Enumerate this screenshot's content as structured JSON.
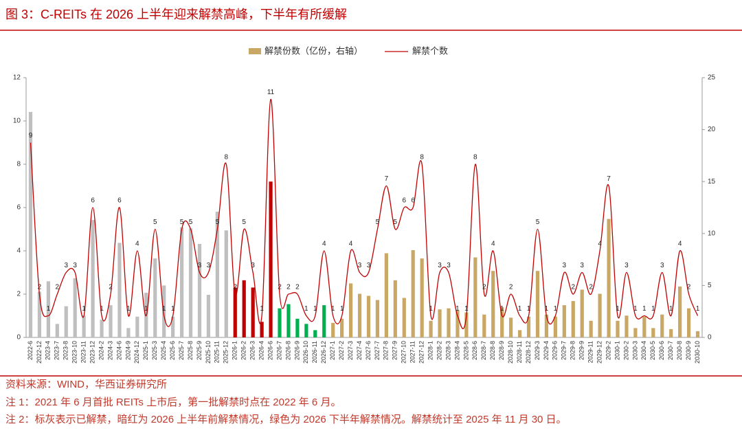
{
  "chart_data": {
    "type": "bar_line",
    "title": "图 3：C-REITs 在 2026 上半年迎来解禁高峰，下半年有所缓解",
    "source": "资料来源：WIND，华西证券研究所",
    "notes": [
      "注 1：2021 年 6 月首批 REITs 上市后，第一批解禁时点在 2022 年 6 月。",
      "注 2：标灰表示已解禁，暗红为 2026 上半年前解禁情况，绿色为 2026 下半年解禁情况。解禁统计至 2025 年 11 月 30 日。"
    ],
    "categories": [
      "2022-6",
      "2022-12",
      "2023-4",
      "2023-7",
      "2023-8",
      "2023-10",
      "2023-11",
      "2023-12",
      "2024-2",
      "2024-3",
      "2024-6",
      "2024-9",
      "2024-12",
      "2025-1",
      "2025-3",
      "2025-4",
      "2025-6",
      "2025-7",
      "2025-8",
      "2025-9",
      "2025-10",
      "2025-11",
      "2025-12",
      "2026-1",
      "2026-2",
      "2026-3",
      "2026-4",
      "2026-6",
      "2026-7",
      "2026-8",
      "2026-9",
      "2026-10",
      "2026-11",
      "2026-12",
      "2027-1",
      "2027-2",
      "2027-3",
      "2027-4",
      "2027-6",
      "2027-7",
      "2027-8",
      "2027-9",
      "2027-10",
      "2027-11",
      "2027-12",
      "2028-1",
      "2028-2",
      "2028-3",
      "2028-4",
      "2028-5",
      "2028-6",
      "2028-7",
      "2028-8",
      "2028-9",
      "2028-10",
      "2028-11",
      "2028-12",
      "2029-3",
      "2029-4",
      "2029-6",
      "2029-7",
      "2029-8",
      "2029-9",
      "2029-11",
      "2029-12",
      "2029-2",
      "2030-1",
      "2030-2",
      "2030-3",
      "2030-4",
      "2030-5",
      "2030-6",
      "2030-7",
      "2030-8",
      "2030-9",
      "2030-10"
    ],
    "series": [
      {
        "name": "解禁份数（亿份，右轴）",
        "kind": "bar",
        "axis": "y2",
        "color": "#c9a765",
        "colors": [
          "#bfbfbf",
          "#bfbfbf",
          "#bfbfbf",
          "#bfbfbf",
          "#bfbfbf",
          "#bfbfbf",
          "#bfbfbf",
          "#bfbfbf",
          "#bfbfbf",
          "#bfbfbf",
          "#bfbfbf",
          "#bfbfbf",
          "#bfbfbf",
          "#bfbfbf",
          "#bfbfbf",
          "#bfbfbf",
          "#bfbfbf",
          "#bfbfbf",
          "#bfbfbf",
          "#bfbfbf",
          "#bfbfbf",
          "#bfbfbf",
          "#bfbfbf",
          "#c00000",
          "#c00000",
          "#c00000",
          "#c00000",
          "#c00000",
          "#00b050",
          "#00b050",
          "#00b050",
          "#00b050",
          "#00b050",
          "#00b050",
          "#c9a765",
          "#c9a765",
          "#c9a765",
          "#c9a765",
          "#c9a765",
          "#c9a765",
          "#c9a765",
          "#c9a765",
          "#c9a765",
          "#c9a765",
          "#c9a765",
          "#c9a765",
          "#c9a765",
          "#c9a765",
          "#c9a765",
          "#c9a765",
          "#c9a765",
          "#c9a765",
          "#c9a765",
          "#c9a765",
          "#c9a765",
          "#c9a765",
          "#c9a765",
          "#c9a765",
          "#c9a765",
          "#c9a765",
          "#c9a765",
          "#c9a765",
          "#c9a765",
          "#c9a765",
          "#c9a765",
          "#c9a765",
          "#c9a765",
          "#c9a765",
          "#c9a765",
          "#c9a765",
          "#c9a765",
          "#c9a765",
          "#c9a765",
          "#c9a765",
          "#c9a765",
          "#c9a765"
        ],
        "values": [
          21.7,
          4.4,
          5.4,
          1.3,
          3.0,
          5.7,
          2.1,
          11.3,
          1.7,
          3.1,
          9.1,
          0.9,
          2.0,
          4.3,
          7.6,
          5.0,
          2.0,
          10.6,
          10.5,
          9.0,
          4.1,
          12.1,
          10.3,
          4.8,
          5.5,
          4.8,
          1.5,
          15.0,
          2.8,
          3.2,
          1.8,
          1.3,
          0.7,
          3.1,
          1.4,
          1.8,
          5.2,
          4.2,
          4.0,
          3.6,
          8.1,
          5.5,
          3.8,
          8.4,
          7.6,
          1.6,
          2.7,
          2.8,
          2.6,
          2.4,
          7.7,
          2.2,
          6.4,
          2.9,
          1.9,
          0.7,
          2.0,
          6.4,
          2.2,
          2.0,
          3.1,
          3.5,
          4.6,
          1.6,
          4.2,
          11.4,
          1.6,
          2.1,
          0.9,
          2.0,
          0.9,
          2.2,
          0.8,
          4.9,
          2.8,
          0.6
        ]
      },
      {
        "name": "解禁个数",
        "kind": "line",
        "color": "#c00000",
        "values": [
          9,
          2,
          1,
          2,
          3,
          3,
          1,
          6,
          1,
          2,
          6,
          1,
          4,
          1,
          5,
          1,
          1,
          5,
          5,
          3,
          3,
          5,
          8,
          2,
          5,
          3,
          1,
          11,
          2,
          2,
          2,
          1,
          1,
          4,
          1,
          1,
          4,
          3,
          3,
          5,
          7,
          5,
          6,
          6,
          8,
          1,
          3,
          3,
          1,
          1,
          8,
          2,
          4,
          1,
          2,
          1,
          1,
          5,
          1,
          1,
          3,
          2,
          3,
          2,
          4,
          7,
          1,
          3,
          1,
          1,
          1,
          3,
          1,
          4,
          2,
          1
        ]
      }
    ],
    "ylim": [
      0,
      12
    ],
    "yticks": [
      0,
      2,
      4,
      6,
      8,
      10,
      12
    ],
    "y2lim": [
      0,
      25
    ],
    "y2ticks": [
      0,
      5,
      10,
      15,
      20,
      25
    ],
    "legend": "top"
  }
}
